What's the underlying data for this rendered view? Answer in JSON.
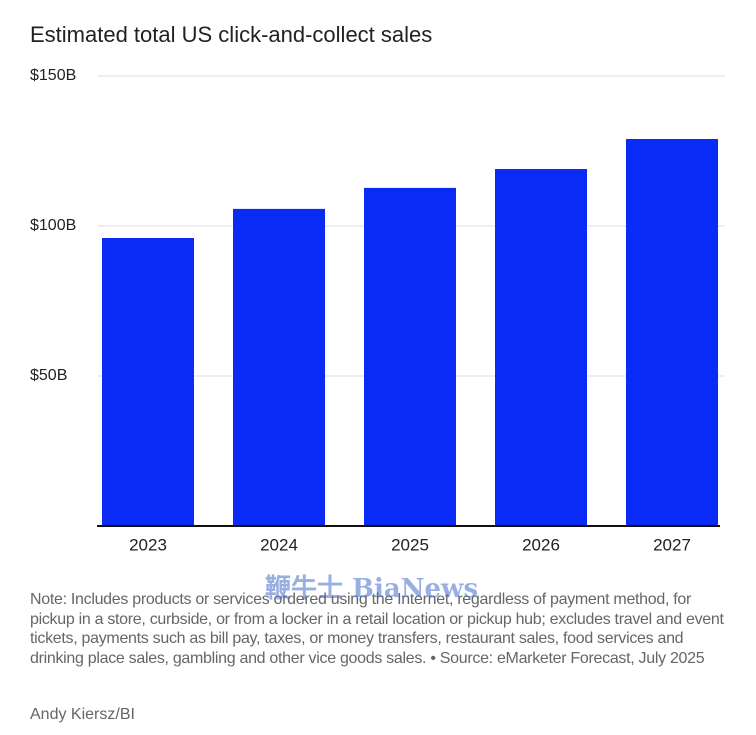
{
  "chart_data": {
    "type": "bar",
    "title": "Estimated total US click-and-collect sales",
    "categories": [
      "2023",
      "2024",
      "2025",
      "2026",
      "2027"
    ],
    "values": [
      96,
      105.7,
      112.7,
      119,
      129
    ],
    "color": "#0a2bf5",
    "ylim": [
      0,
      150
    ],
    "yticks": [
      {
        "value": 50,
        "label": "$50B"
      },
      {
        "value": 100,
        "label": "$100B"
      },
      {
        "value": 150,
        "label": "$150B"
      }
    ],
    "grid": true,
    "note": "Note: Includes products or services ordered using the Internet, regardless of payment method, for pickup in a store, curbside, or from a locker in a retail location or pickup hub; excludes travel and event tickets, payments such as bill pay, taxes, or money transfers, restaurant sales, food services and drinking place sales, gambling and other vice goods sales. • Source: eMarketer Forecast, July 2025",
    "credit": "Andy Kiersz/BI",
    "watermark": "鞭牛士 BiaNews"
  }
}
